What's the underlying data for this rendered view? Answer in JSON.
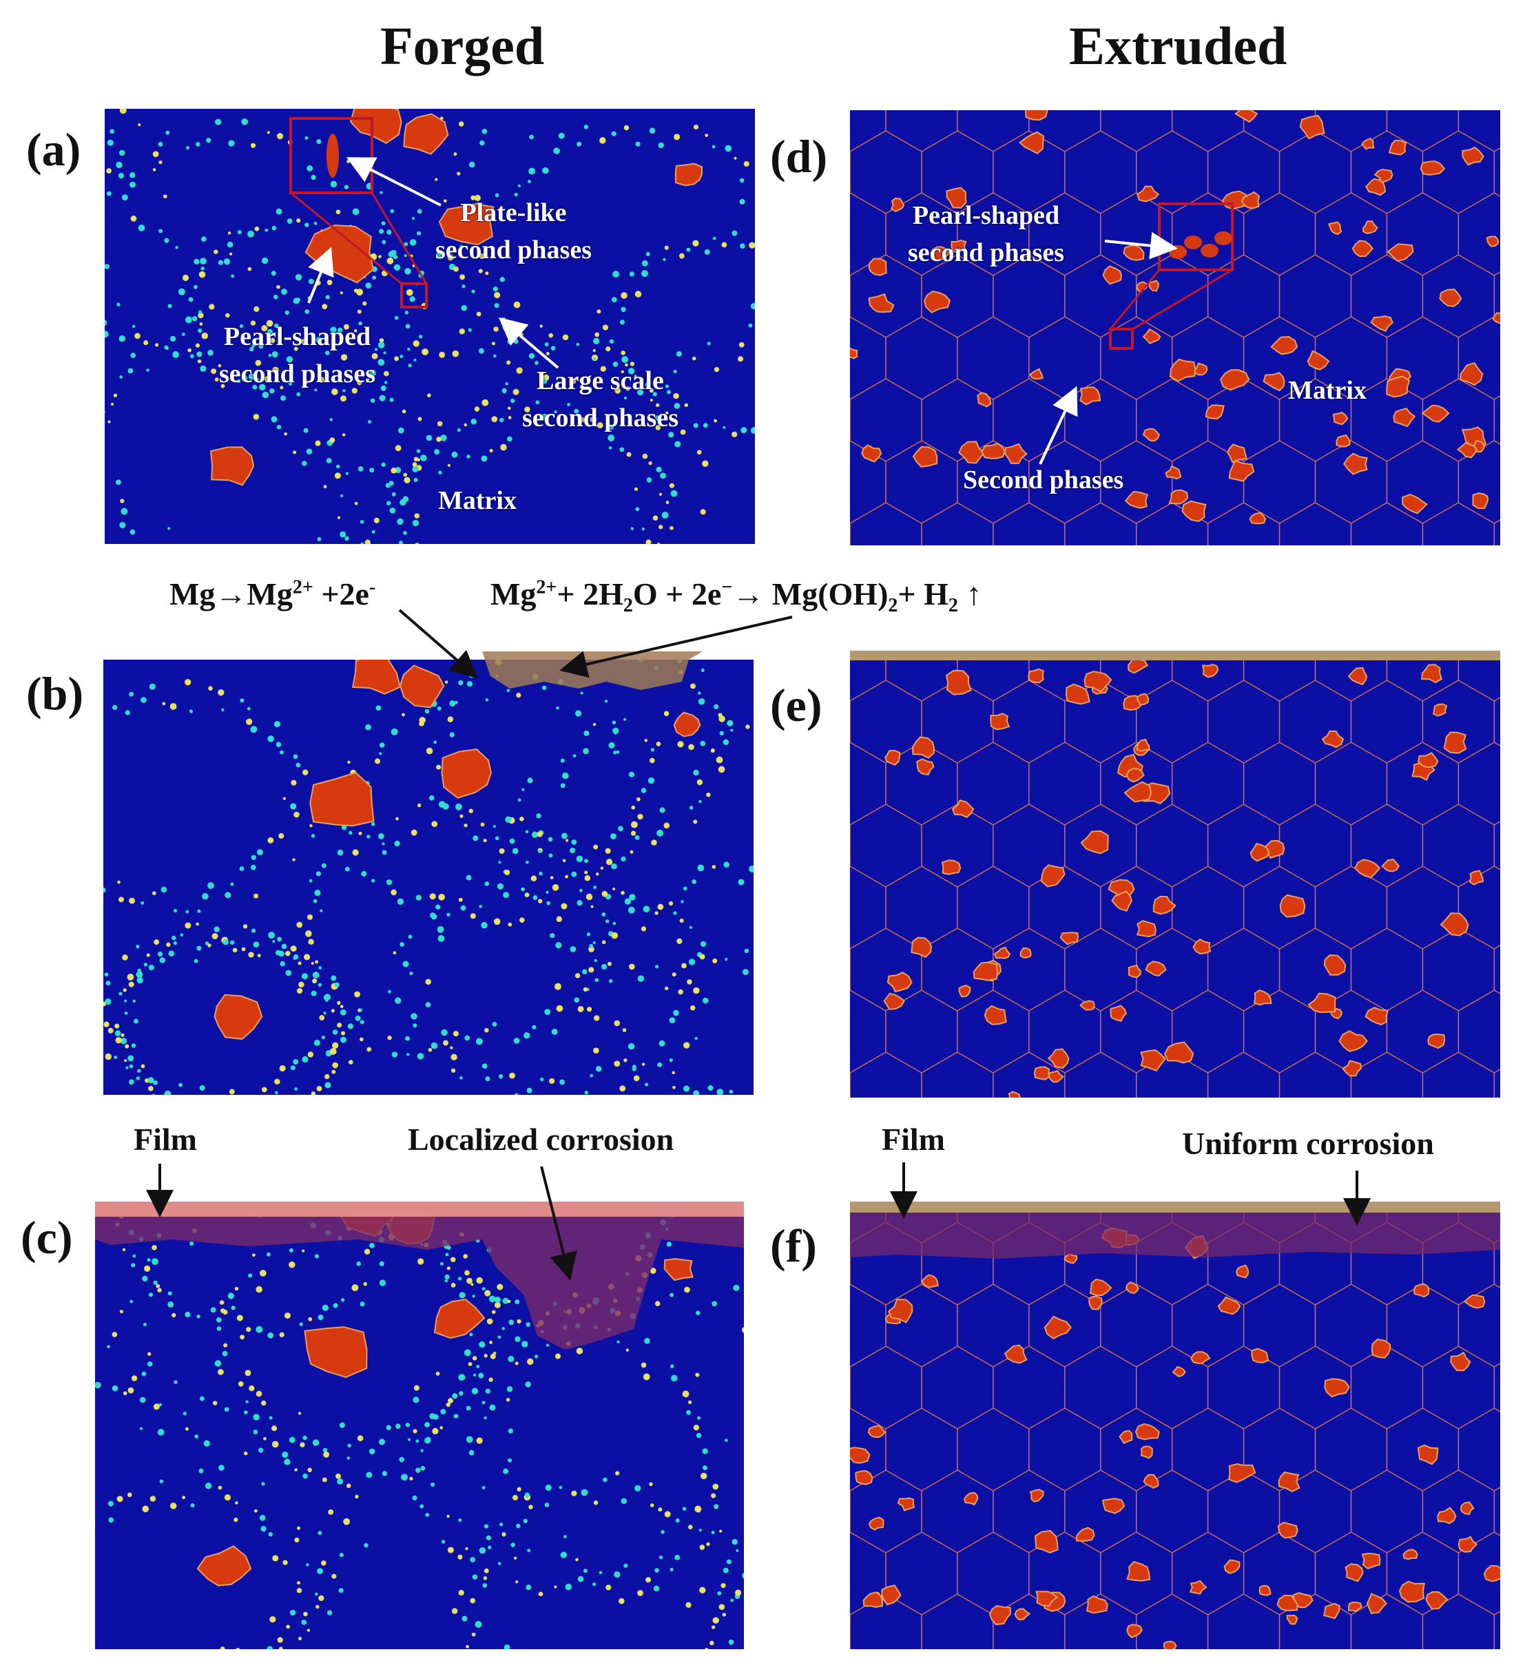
{
  "column_titles": {
    "forged": "Forged",
    "extruded": "Extruded"
  },
  "panel_labels": {
    "a": "(a)",
    "b": "(b)",
    "c": "(c)",
    "d": "(d)",
    "e": "(e)",
    "f": "(f)"
  },
  "annotations_a": {
    "plate_like": [
      "Plate-like",
      "second phases"
    ],
    "pearl_shaped": [
      "Pearl-shaped",
      "second phases"
    ],
    "large_scale": [
      "Large scale",
      "second phases"
    ],
    "matrix": "Matrix"
  },
  "annotations_d": {
    "pearl_shaped": [
      "Pearl-shaped",
      "second phases"
    ],
    "second_phases": "Second phases",
    "matrix": "Matrix"
  },
  "equations": {
    "anodic": {
      "a": "Mg→Mg",
      "sup1": "2+",
      "b": " +2e",
      "sup2": "-"
    },
    "cathodic": {
      "a": "Mg",
      "sup1": "2+",
      "b": "+ 2H",
      "sub1": "2",
      "c": "O + 2e",
      "sup2": "−",
      "d": "→ Mg(OH)",
      "sub2": "2",
      "e": "+ H",
      "sub3": "2",
      "f": " ↑"
    }
  },
  "bottom_labels": {
    "film_left": "Film",
    "localized": "Localized corrosion",
    "film_right": "Film",
    "uniform": "Uniform corrosion"
  },
  "colors": {
    "matrix": "#0b0fa3",
    "second_phase": "#d83a10",
    "phase_outline": "#e8a060",
    "boundary_dots": "#33ddcc",
    "grain_boundary": "#d07050",
    "film_forged": "#e08a8a",
    "film_extruded": "#b59870",
    "corrosion": "#7a2a6a",
    "callout": "#c0182a"
  }
}
